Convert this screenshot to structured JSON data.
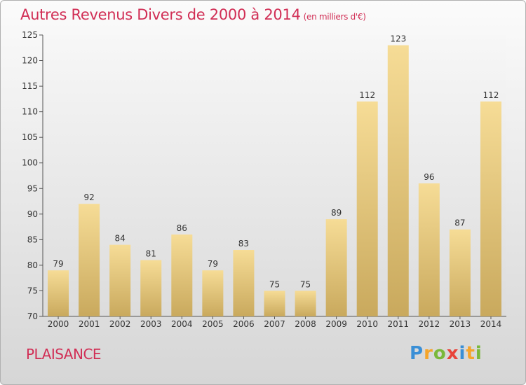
{
  "header": {
    "title": "Autres Revenus Divers de 2000 à 2014",
    "subtitle": "(en milliers d'€)"
  },
  "footer": {
    "city": "PLAISANCE"
  },
  "logo": {
    "letters": [
      "P",
      "r",
      "o",
      "x",
      "i",
      "t",
      "i"
    ],
    "colors": [
      "#3a8fd6",
      "#f5a52a",
      "#7ab83a",
      "#e8443a",
      "#3a8fd6",
      "#f5a52a",
      "#7ab83a"
    ]
  },
  "chart_data": {
    "type": "bar",
    "title": "Autres Revenus Divers de 2000 à 2014",
    "subtitle": "(en milliers d'€)",
    "categories": [
      "2000",
      "2001",
      "2002",
      "2003",
      "2004",
      "2005",
      "2006",
      "2007",
      "2008",
      "2009",
      "2010",
      "2011",
      "2012",
      "2013",
      "2014"
    ],
    "values": [
      79,
      92,
      84,
      81,
      86,
      79,
      83,
      75,
      75,
      89,
      112,
      123,
      96,
      87,
      112
    ],
    "ylim": [
      70,
      125
    ],
    "yticks": [
      70,
      75,
      80,
      85,
      90,
      95,
      100,
      105,
      110,
      115,
      120,
      125
    ],
    "grid": false,
    "bar_color_top": "#f6dc96",
    "bar_color_bottom": "#c9a95d"
  }
}
